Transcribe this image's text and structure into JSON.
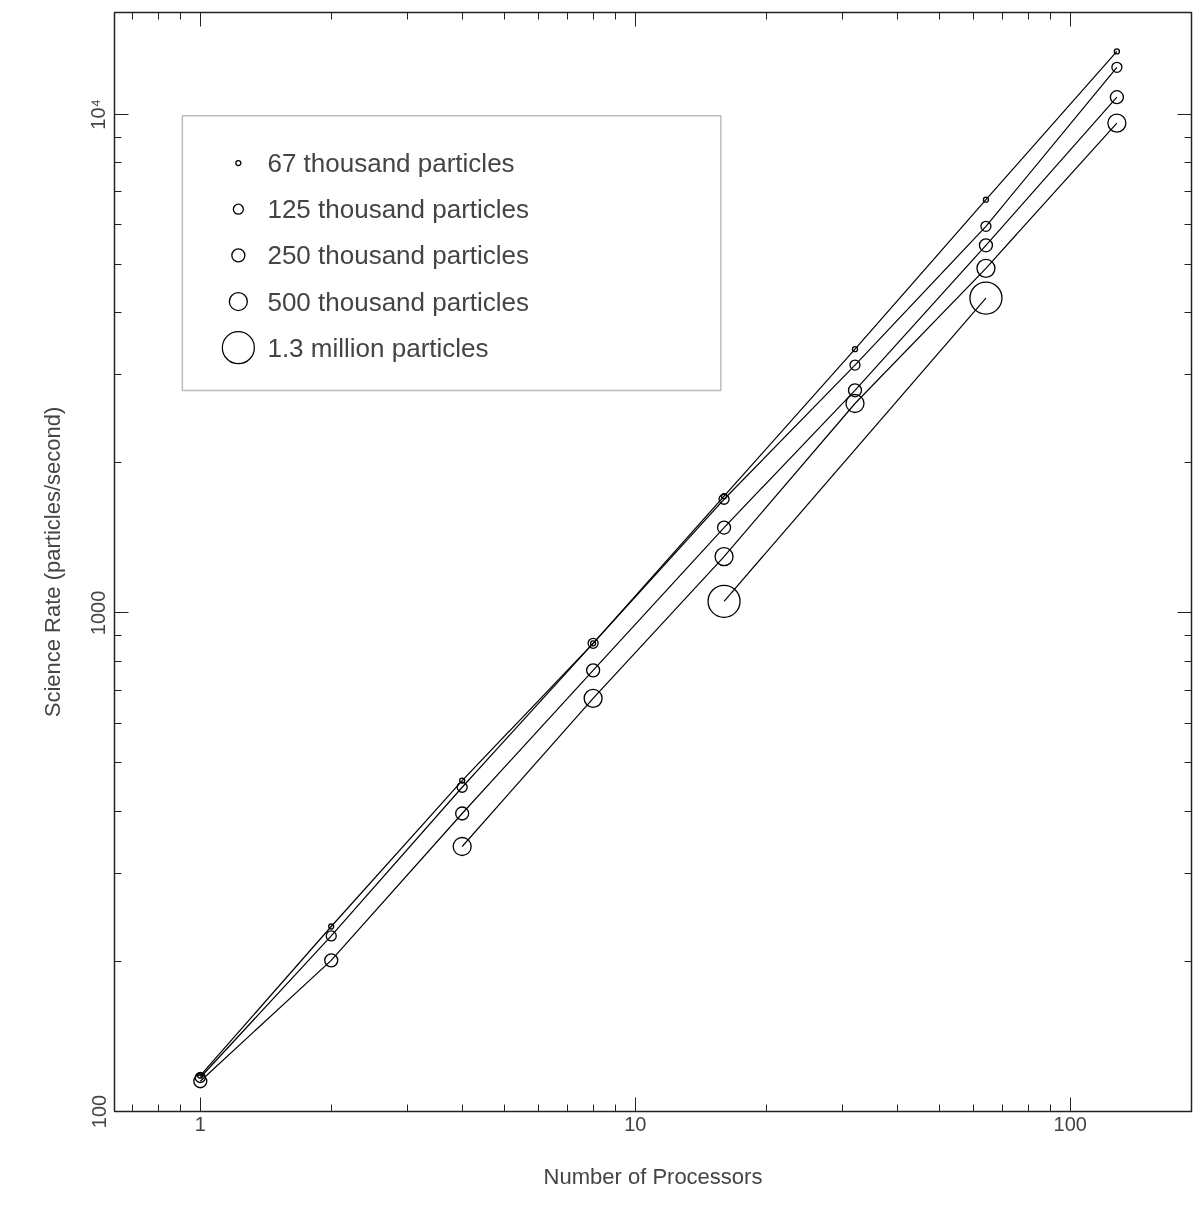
{
  "chart_data": {
    "type": "line",
    "xlabel": "Number of Processors",
    "ylabel": "Science Rate (particles/second)",
    "log": "xy",
    "marker": "circle",
    "grid": false,
    "legend": "top left",
    "xlim": [
      0.635,
      190
    ],
    "ylim": [
      100,
      16000
    ],
    "xticks": [
      1,
      10,
      100
    ],
    "yticks": [
      {
        "value": 100,
        "label": "100"
      },
      {
        "value": 1000,
        "label": "1000"
      },
      {
        "value": 10000,
        "label": "10⁴"
      }
    ],
    "series": [
      {
        "name": "67 thousand particles",
        "color": "#000000",
        "x": [
          1,
          2,
          4,
          8,
          16,
          32,
          64,
          128
        ],
        "values": [
          118,
          235,
          461,
          869,
          1714,
          3380,
          6740,
          13370
        ]
      },
      {
        "name": "125 thousand particles",
        "color": "#000000",
        "x": [
          1,
          2,
          4,
          8,
          16,
          32,
          64,
          128
        ],
        "values": [
          117,
          225,
          447,
          869,
          1690,
          3140,
          5960,
          12420
        ]
      },
      {
        "name": "250 thousand particles",
        "color": "#000000",
        "x": [
          1,
          2,
          4,
          8,
          16,
          32,
          64,
          128
        ],
        "values": [
          115,
          201,
          396,
          767,
          1483,
          2795,
          5460,
          10820
        ]
      },
      {
        "name": "500 thousand particles",
        "color": "#000000",
        "x": [
          4,
          8,
          16,
          32,
          64,
          128
        ],
        "values": [
          340,
          674,
          1297,
          2630,
          4910,
          9600
        ]
      },
      {
        "name": "1.3 million particles",
        "color": "#000000",
        "x": [
          16,
          64
        ],
        "values": [
          1055,
          4280
        ]
      }
    ]
  }
}
